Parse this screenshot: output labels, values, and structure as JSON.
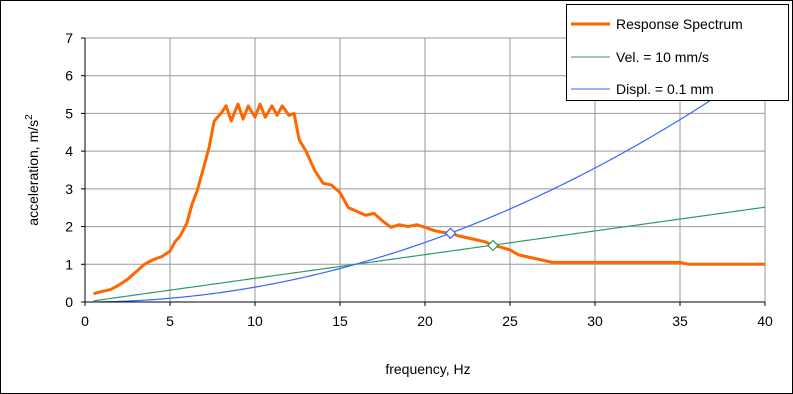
{
  "chart_data": {
    "type": "line",
    "xlabel": "frequency, Hz",
    "ylabel": "acceleration, m/s",
    "ylabel_superscript": "2",
    "xlim": [
      0,
      40
    ],
    "ylim": [
      0,
      7
    ],
    "x_ticks": [
      0,
      5,
      10,
      15,
      20,
      25,
      30,
      35,
      40
    ],
    "y_ticks": [
      0,
      1,
      2,
      3,
      4,
      5,
      6,
      7
    ],
    "grid": true,
    "legend_position": "top-right",
    "series": [
      {
        "name": "Response Spectrum",
        "color": "#ff6600",
        "style": "thick",
        "points": [
          [
            0.5,
            0.22
          ],
          [
            1.0,
            0.28
          ],
          [
            1.5,
            0.33
          ],
          [
            2.0,
            0.45
          ],
          [
            2.5,
            0.6
          ],
          [
            3.0,
            0.8
          ],
          [
            3.5,
            1.0
          ],
          [
            4.0,
            1.12
          ],
          [
            4.5,
            1.2
          ],
          [
            5.0,
            1.35
          ],
          [
            5.3,
            1.6
          ],
          [
            5.6,
            1.75
          ],
          [
            6.0,
            2.1
          ],
          [
            6.3,
            2.6
          ],
          [
            6.6,
            2.95
          ],
          [
            7.0,
            3.6
          ],
          [
            7.3,
            4.1
          ],
          [
            7.6,
            4.8
          ],
          [
            8.0,
            5.0
          ],
          [
            8.3,
            5.2
          ],
          [
            8.6,
            4.8
          ],
          [
            9.0,
            5.25
          ],
          [
            9.3,
            4.85
          ],
          [
            9.6,
            5.2
          ],
          [
            10.0,
            4.9
          ],
          [
            10.3,
            5.25
          ],
          [
            10.6,
            4.9
          ],
          [
            11.0,
            5.2
          ],
          [
            11.3,
            4.95
          ],
          [
            11.6,
            5.2
          ],
          [
            12.0,
            4.95
          ],
          [
            12.3,
            5.0
          ],
          [
            12.6,
            4.3
          ],
          [
            13.0,
            4.0
          ],
          [
            13.5,
            3.5
          ],
          [
            14.0,
            3.15
          ],
          [
            14.5,
            3.1
          ],
          [
            15.0,
            2.9
          ],
          [
            15.5,
            2.5
          ],
          [
            16.0,
            2.4
          ],
          [
            16.5,
            2.3
          ],
          [
            17.0,
            2.35
          ],
          [
            17.5,
            2.15
          ],
          [
            18.0,
            1.98
          ],
          [
            18.5,
            2.05
          ],
          [
            19.0,
            2.0
          ],
          [
            19.5,
            2.05
          ],
          [
            20.0,
            1.98
          ],
          [
            20.5,
            1.9
          ],
          [
            21.0,
            1.85
          ],
          [
            21.5,
            1.82
          ],
          [
            22.0,
            1.75
          ],
          [
            22.5,
            1.7
          ],
          [
            23.0,
            1.65
          ],
          [
            23.5,
            1.6
          ],
          [
            24.0,
            1.5
          ],
          [
            24.5,
            1.45
          ],
          [
            25.0,
            1.38
          ],
          [
            25.5,
            1.25
          ],
          [
            26.0,
            1.2
          ],
          [
            26.5,
            1.15
          ],
          [
            27.0,
            1.1
          ],
          [
            27.5,
            1.05
          ],
          [
            28.0,
            1.05
          ],
          [
            28.5,
            1.05
          ],
          [
            29.0,
            1.05
          ],
          [
            30.0,
            1.05
          ],
          [
            32.0,
            1.05
          ],
          [
            35.0,
            1.05
          ],
          [
            35.5,
            1.0
          ],
          [
            38.0,
            1.0
          ],
          [
            40.0,
            1.0
          ]
        ]
      },
      {
        "name": "Vel. = 10 mm/s",
        "color": "#339966",
        "style": "thin",
        "formula": "2*pi*f*0.01",
        "x_range": [
          0.5,
          40
        ],
        "marker": {
          "x": 24.0,
          "y": 1.5,
          "shape": "diamond"
        }
      },
      {
        "name": "Displ. = 0.1 mm",
        "color": "#3366ff",
        "style": "thin",
        "formula": "(2*pi*f)^2*0.0001",
        "x_range": [
          0.5,
          40
        ],
        "marker": {
          "x": 21.5,
          "y": 1.82,
          "shape": "diamond"
        }
      }
    ]
  }
}
